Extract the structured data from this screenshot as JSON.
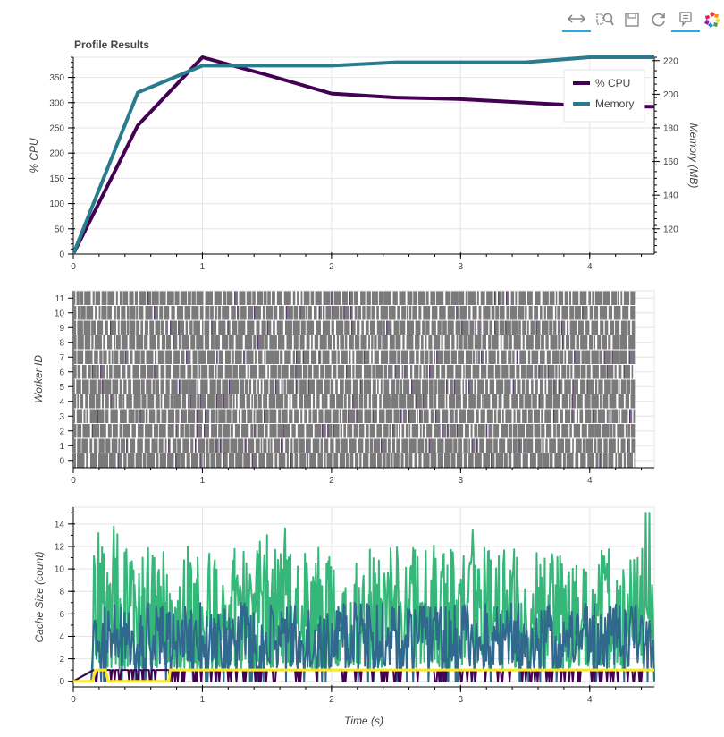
{
  "toolbar": {
    "tools": [
      {
        "name": "pan-tool",
        "icon": "pan-icon",
        "active": true
      },
      {
        "name": "box-zoom-tool",
        "icon": "box-zoom-icon",
        "active": false
      },
      {
        "name": "save-tool",
        "icon": "save-icon",
        "active": false
      },
      {
        "name": "reset-tool",
        "icon": "reset-icon",
        "active": false
      },
      {
        "name": "hover-tool",
        "icon": "hover-icon",
        "active": true
      },
      {
        "name": "bokeh-logo",
        "icon": "bokeh-logo-icon",
        "active": false
      }
    ],
    "accent_color": "#26aae1"
  },
  "title": "Profile Results",
  "chart_data": [
    {
      "type": "line",
      "title": "Profile Results",
      "xlabel": "",
      "ylabel": "% CPU",
      "y2label": "Memory (MB)",
      "xlim": [
        0,
        4.5
      ],
      "ylim": [
        0,
        390
      ],
      "y2lim": [
        105,
        222
      ],
      "xticks": [
        0,
        1,
        2,
        3,
        4
      ],
      "yticks": [
        0,
        50,
        100,
        150,
        200,
        250,
        300,
        350
      ],
      "y2ticks": [
        120,
        140,
        160,
        180,
        200,
        220
      ],
      "grid": true,
      "legend_position": "top-right",
      "series": [
        {
          "name": "% CPU",
          "axis": "left",
          "color": "#440154",
          "x": [
            0,
            0.5,
            1.0,
            1.5,
            2.0,
            2.5,
            3.0,
            3.5,
            4.0,
            4.5
          ],
          "y": [
            0,
            255,
            390,
            355,
            318,
            310,
            307,
            300,
            293,
            292
          ]
        },
        {
          "name": "Memory",
          "axis": "right",
          "color": "#287c8e",
          "x": [
            0,
            0.5,
            1.0,
            1.5,
            2.0,
            2.5,
            3.0,
            3.5,
            4.0,
            4.5
          ],
          "y": [
            105,
            201,
            217,
            217,
            217,
            219,
            219,
            219,
            222,
            222
          ]
        }
      ]
    },
    {
      "type": "bar",
      "title": "",
      "xlabel": "",
      "ylabel": "Worker ID",
      "xlim": [
        0,
        4.5
      ],
      "ylim": [
        -0.5,
        11.5
      ],
      "xticks": [
        0,
        1,
        2,
        3,
        4
      ],
      "yticks": [
        0,
        1,
        2,
        3,
        4,
        5,
        6,
        7,
        8,
        9,
        10,
        11
      ],
      "worker_ids": [
        0,
        1,
        2,
        3,
        4,
        5,
        6,
        7,
        8,
        9,
        10,
        11
      ],
      "task_span": [
        0,
        4.35
      ],
      "task_color": "#7a7a7a",
      "accent_color": "#5a3a6a",
      "grid": true
    },
    {
      "type": "line",
      "title": "",
      "xlabel": "Time (s)",
      "ylabel": "Cache Size (count)",
      "xlim": [
        0,
        4.5
      ],
      "ylim": [
        -0.5,
        15.5
      ],
      "xticks": [
        0,
        1,
        2,
        3,
        4
      ],
      "yticks": [
        0,
        2,
        4,
        6,
        8,
        10,
        12,
        14
      ],
      "grid": true,
      "series": [
        {
          "color": "#440154",
          "typical_range": [
            0,
            1
          ]
        },
        {
          "color": "#31688e",
          "typical_range": [
            1,
            7
          ]
        },
        {
          "color": "#35b779",
          "typical_range": [
            1,
            13
          ],
          "max": 15
        },
        {
          "color": "#fde725",
          "x": [
            0,
            0.15,
            0.17,
            0.25,
            0.27,
            0.74,
            0.75,
            4.5
          ],
          "y": [
            0,
            0,
            1,
            1,
            0,
            0,
            1,
            1
          ]
        }
      ]
    }
  ]
}
